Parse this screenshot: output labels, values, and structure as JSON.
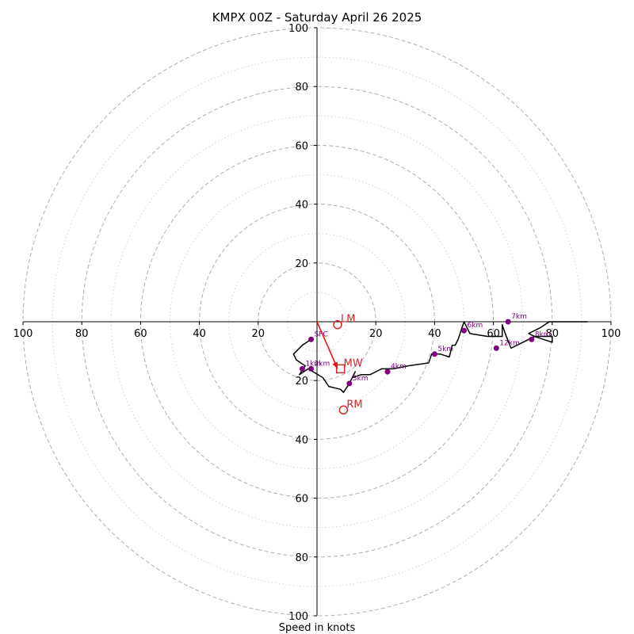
{
  "chart_data": {
    "type": "hodograph",
    "title": "KMPX 00Z - Saturday April 26 2025",
    "xlabel": "Speed in knots",
    "ylabel": "",
    "axis_range": [
      -100,
      100
    ],
    "tick_labels_x": [
      "100",
      "80",
      "60",
      "40",
      "20",
      "20",
      "40",
      "60",
      "80",
      "100"
    ],
    "tick_values_x": [
      -100,
      -80,
      -60,
      -40,
      -20,
      20,
      40,
      60,
      80,
      100
    ],
    "tick_labels_y": [
      "100",
      "80",
      "60",
      "40",
      "20",
      "20",
      "40",
      "60",
      "80",
      "100"
    ],
    "tick_values_y": [
      100,
      80,
      60,
      40,
      20,
      -20,
      -40,
      -60,
      -80,
      -100
    ],
    "rings_major": [
      20,
      40,
      60,
      80,
      100
    ],
    "rings_minor": [
      10,
      30,
      50,
      70,
      90
    ],
    "grid": true,
    "colors": {
      "trace": "#000000",
      "height_points": "#800080",
      "storm_markers": "#d62728",
      "shear_vector": "#ff0000",
      "grid": "#b0b0b0"
    },
    "hodograph_trace": [
      [
        -2,
        -6
      ],
      [
        -5,
        -8
      ],
      [
        -8,
        -11
      ],
      [
        -7,
        -13
      ],
      [
        -4,
        -15
      ],
      [
        -6,
        -18
      ],
      [
        -3,
        -16
      ],
      [
        2,
        -19
      ],
      [
        4,
        -22
      ],
      [
        8,
        -23
      ],
      [
        9,
        -24
      ],
      [
        11,
        -21
      ],
      [
        13,
        -17
      ],
      [
        12,
        -19
      ],
      [
        15,
        -18
      ],
      [
        18,
        -18
      ],
      [
        22,
        -16
      ],
      [
        26,
        -16
      ],
      [
        31,
        -15
      ],
      [
        38,
        -14
      ],
      [
        39,
        -11
      ],
      [
        42,
        -11
      ],
      [
        45,
        -12
      ],
      [
        46,
        -8
      ],
      [
        47,
        -8
      ],
      [
        48,
        -6
      ],
      [
        49,
        -3
      ],
      [
        50,
        0
      ],
      [
        52,
        -4
      ],
      [
        58,
        -5
      ],
      [
        63,
        -5
      ],
      [
        63,
        -1
      ],
      [
        64,
        -4
      ],
      [
        66,
        -9
      ],
      [
        70,
        -7
      ],
      [
        74,
        -5
      ],
      [
        80,
        -7
      ],
      [
        80,
        -5
      ],
      [
        76,
        -5
      ],
      [
        74,
        -5
      ],
      [
        72,
        -4
      ],
      [
        76,
        -2
      ],
      [
        79,
        0
      ],
      [
        84,
        0
      ],
      [
        92,
        0
      ]
    ],
    "height_points": [
      {
        "label": "SFC",
        "u": -2,
        "v": -6
      },
      {
        "label": "1km",
        "u": -5,
        "v": -16
      },
      {
        "label": "2km",
        "u": -2,
        "v": -16
      },
      {
        "label": "3km",
        "u": 11,
        "v": -21
      },
      {
        "label": "4km",
        "u": 24,
        "v": -17
      },
      {
        "label": "5km",
        "u": 40,
        "v": -11
      },
      {
        "label": "6km",
        "u": 50,
        "v": -3
      },
      {
        "label": "7km",
        "u": 65,
        "v": 0
      },
      {
        "label": "8km",
        "u": 73,
        "v": -6
      },
      {
        "label": "12km",
        "u": 61,
        "v": -9
      }
    ],
    "storm_markers": [
      {
        "label": "LM",
        "u": 7,
        "v": -1,
        "shape": "circle"
      },
      {
        "label": "MW",
        "u": 8,
        "v": -16,
        "shape": "square"
      },
      {
        "label": "RM",
        "u": 9,
        "v": -30,
        "shape": "circle"
      }
    ],
    "shear_vector": {
      "from": [
        0,
        0
      ],
      "to": [
        7,
        -16
      ]
    }
  }
}
